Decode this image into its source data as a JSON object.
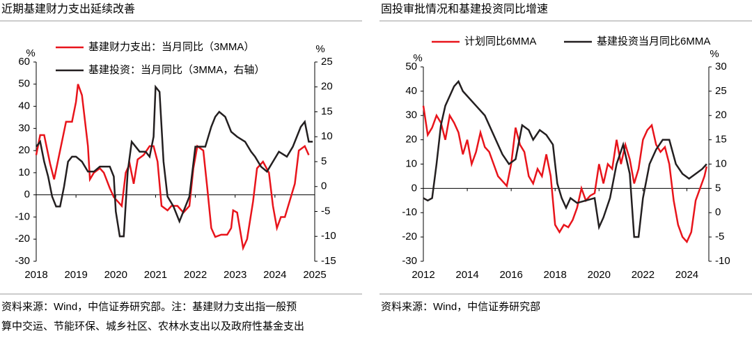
{
  "chart_data": [
    {
      "type": "line",
      "title": "近期基建财力支出延续改善",
      "y_unit": "%",
      "y2_unit": "%",
      "xlim": [
        2018,
        2025
      ],
      "xticks": [
        2018,
        2019,
        2020,
        2021,
        2022,
        2023,
        2024,
        2025
      ],
      "ylim": [
        -30,
        60
      ],
      "yticks": [
        -30,
        -20,
        -10,
        0,
        10,
        20,
        30,
        40,
        50,
        60
      ],
      "y2lim": [
        -15,
        25
      ],
      "y2ticks": [
        -15,
        -10,
        -5,
        0,
        5,
        10,
        15,
        20,
        25
      ],
      "legend": "top-left-stacked",
      "series": [
        {
          "name": "基建财力支出：当月同比（3MMA）",
          "color": "#e8141b",
          "x": [
            2018.0,
            2018.1,
            2018.2,
            2018.35,
            2018.45,
            2018.6,
            2018.75,
            2018.9,
            2019.0,
            2019.05,
            2019.15,
            2019.3,
            2019.35,
            2019.45,
            2019.6,
            2019.7,
            2019.85,
            2019.95,
            2020.05,
            2020.15,
            2020.25,
            2020.35,
            2020.45,
            2020.55,
            2020.7,
            2020.85,
            2020.95,
            2021.05,
            2021.15,
            2021.3,
            2021.4,
            2021.55,
            2021.7,
            2021.85,
            2021.95,
            2022.05,
            2022.2,
            2022.3,
            2022.4,
            2022.5,
            2022.65,
            2022.8,
            2022.9,
            2022.95,
            2023.05,
            2023.2,
            2023.3,
            2023.45,
            2023.55,
            2023.7,
            2023.85,
            2023.95,
            2024.05,
            2024.15,
            2024.25,
            2024.4,
            2024.5,
            2024.6,
            2024.75,
            2024.85
          ],
          "values": [
            18,
            27,
            27,
            14,
            7,
            20,
            33,
            33,
            42,
            50,
            45,
            22,
            7,
            10,
            12,
            10,
            3,
            -1,
            -3,
            -5,
            10,
            14,
            5,
            16,
            18,
            22,
            22,
            15,
            -5,
            -7,
            -5,
            -5,
            -8,
            -5,
            12,
            22,
            20,
            3,
            -15,
            -19,
            -18,
            -18,
            -15,
            -7,
            -8,
            -24,
            -20,
            -3,
            12,
            15,
            10,
            -5,
            -15,
            -10,
            -10,
            -1,
            5,
            20,
            22,
            18
          ]
        },
        {
          "name": "基建投资：当月同比（3MMA，右轴）",
          "color": "#231f20",
          "axis": "y2",
          "x": [
            2018.0,
            2018.1,
            2018.2,
            2018.3,
            2018.4,
            2018.5,
            2018.6,
            2018.7,
            2018.8,
            2018.9,
            2019.0,
            2019.15,
            2019.3,
            2019.45,
            2019.6,
            2019.75,
            2019.85,
            2019.95,
            2020.0,
            2020.1,
            2020.2,
            2020.3,
            2020.4,
            2020.5,
            2020.6,
            2020.75,
            2020.85,
            2020.95,
            2021.0,
            2021.1,
            2021.2,
            2021.3,
            2021.45,
            2021.6,
            2021.7,
            2021.85,
            2022.0,
            2022.1,
            2022.25,
            2022.4,
            2022.5,
            2022.6,
            2022.75,
            2022.9,
            2023.05,
            2023.25,
            2023.4,
            2023.5,
            2023.65,
            2023.8,
            2023.95,
            2024.1,
            2024.3,
            2024.45,
            2024.55,
            2024.65,
            2024.75,
            2024.85,
            2024.95
          ],
          "values": [
            8,
            9,
            5,
            2,
            -2,
            -4,
            -4,
            0,
            5,
            6,
            6,
            5,
            3,
            3,
            4,
            4,
            4,
            2,
            -5,
            -10,
            -10,
            3,
            9,
            8,
            7,
            7,
            6,
            10,
            20,
            19,
            5,
            -2,
            -4,
            -7,
            -5,
            -2,
            8,
            8,
            8,
            12,
            14,
            15,
            14,
            11,
            10,
            9,
            7,
            6,
            4,
            3,
            5,
            7,
            6,
            8,
            10,
            12,
            13,
            9,
            9
          ]
        }
      ],
      "source": [
        "资料来源：Wind，中信证券研究部。注：基建财力支出指一般预",
        "算中交运、节能环保、城乡社区、农林水支出以及政府性基金支出"
      ]
    },
    {
      "type": "line",
      "title": "固投审批情况和基建投资同比增速",
      "y_unit": "%",
      "y2_unit": "%",
      "xlim": [
        2012,
        2025
      ],
      "xticks": [
        2012,
        2014,
        2016,
        2018,
        2020,
        2022,
        2024
      ],
      "ylim": [
        -30,
        50
      ],
      "yticks": [
        -30,
        -20,
        -10,
        0,
        10,
        20,
        30,
        40,
        50
      ],
      "y2lim": [
        -10,
        30
      ],
      "y2ticks": [
        -10,
        -5,
        0,
        5,
        10,
        15,
        20,
        25,
        30
      ],
      "legend": "top-row",
      "series": [
        {
          "name": "计划同比6MMA",
          "color": "#e8141b",
          "x": [
            2012.0,
            2012.2,
            2012.4,
            2012.6,
            2012.8,
            2013.0,
            2013.2,
            2013.4,
            2013.6,
            2013.8,
            2014.0,
            2014.2,
            2014.4,
            2014.6,
            2014.8,
            2015.0,
            2015.2,
            2015.4,
            2015.6,
            2015.8,
            2016.0,
            2016.2,
            2016.4,
            2016.6,
            2016.8,
            2017.0,
            2017.2,
            2017.4,
            2017.6,
            2017.8,
            2018.0,
            2018.2,
            2018.4,
            2018.6,
            2018.8,
            2019.0,
            2019.2,
            2019.4,
            2019.6,
            2019.8,
            2020.0,
            2020.2,
            2020.4,
            2020.6,
            2020.8,
            2021.0,
            2021.2,
            2021.4,
            2021.6,
            2021.8,
            2022.0,
            2022.2,
            2022.4,
            2022.6,
            2022.8,
            2023.0,
            2023.2,
            2023.4,
            2023.6,
            2023.8,
            2024.0,
            2024.2,
            2024.4,
            2024.6,
            2024.8,
            2024.9
          ],
          "values": [
            34,
            22,
            25,
            30,
            27,
            20,
            30,
            27,
            23,
            14,
            20,
            10,
            15,
            23,
            17,
            15,
            10,
            5,
            3,
            1,
            10,
            25,
            18,
            15,
            5,
            2,
            8,
            5,
            14,
            5,
            -15,
            -18,
            -15,
            -16,
            -13,
            -8,
            0,
            -5,
            -3,
            -2,
            10,
            2,
            10,
            8,
            20,
            10,
            18,
            12,
            2,
            8,
            20,
            24,
            26,
            18,
            15,
            17,
            10,
            -5,
            -15,
            -20,
            -22,
            -18,
            -5,
            0,
            5,
            9
          ]
        },
        {
          "name": "基建投资当月同比6MMA",
          "color": "#231f20",
          "axis": "y2",
          "x": [
            2012.0,
            2012.2,
            2012.4,
            2012.6,
            2012.8,
            2013.0,
            2013.2,
            2013.4,
            2013.6,
            2013.8,
            2014.0,
            2014.4,
            2014.8,
            2015.0,
            2015.3,
            2015.6,
            2015.9,
            2016.2,
            2016.5,
            2016.8,
            2017.0,
            2017.3,
            2017.6,
            2017.9,
            2018.1,
            2018.3,
            2018.5,
            2018.7,
            2019.0,
            2019.4,
            2019.8,
            2020.0,
            2020.2,
            2020.5,
            2020.8,
            2021.1,
            2021.4,
            2021.6,
            2021.8,
            2022.0,
            2022.3,
            2022.6,
            2022.9,
            2023.2,
            2023.5,
            2023.8,
            2024.1,
            2024.4,
            2024.7,
            2024.9
          ],
          "values": [
            3,
            2.5,
            3,
            10,
            18,
            22,
            24,
            26,
            27,
            25,
            24,
            22,
            20,
            18,
            15,
            12,
            10,
            11,
            18,
            17,
            15,
            17,
            16,
            14,
            6,
            3,
            1,
            3,
            2,
            2.5,
            3,
            -3,
            -1,
            3,
            10,
            14,
            8,
            -5,
            -5,
            3,
            10,
            13,
            15,
            15,
            10,
            8,
            7,
            8,
            9,
            10
          ]
        }
      ],
      "source": [
        "资料来源：Wind，中信证券研究部"
      ]
    }
  ]
}
